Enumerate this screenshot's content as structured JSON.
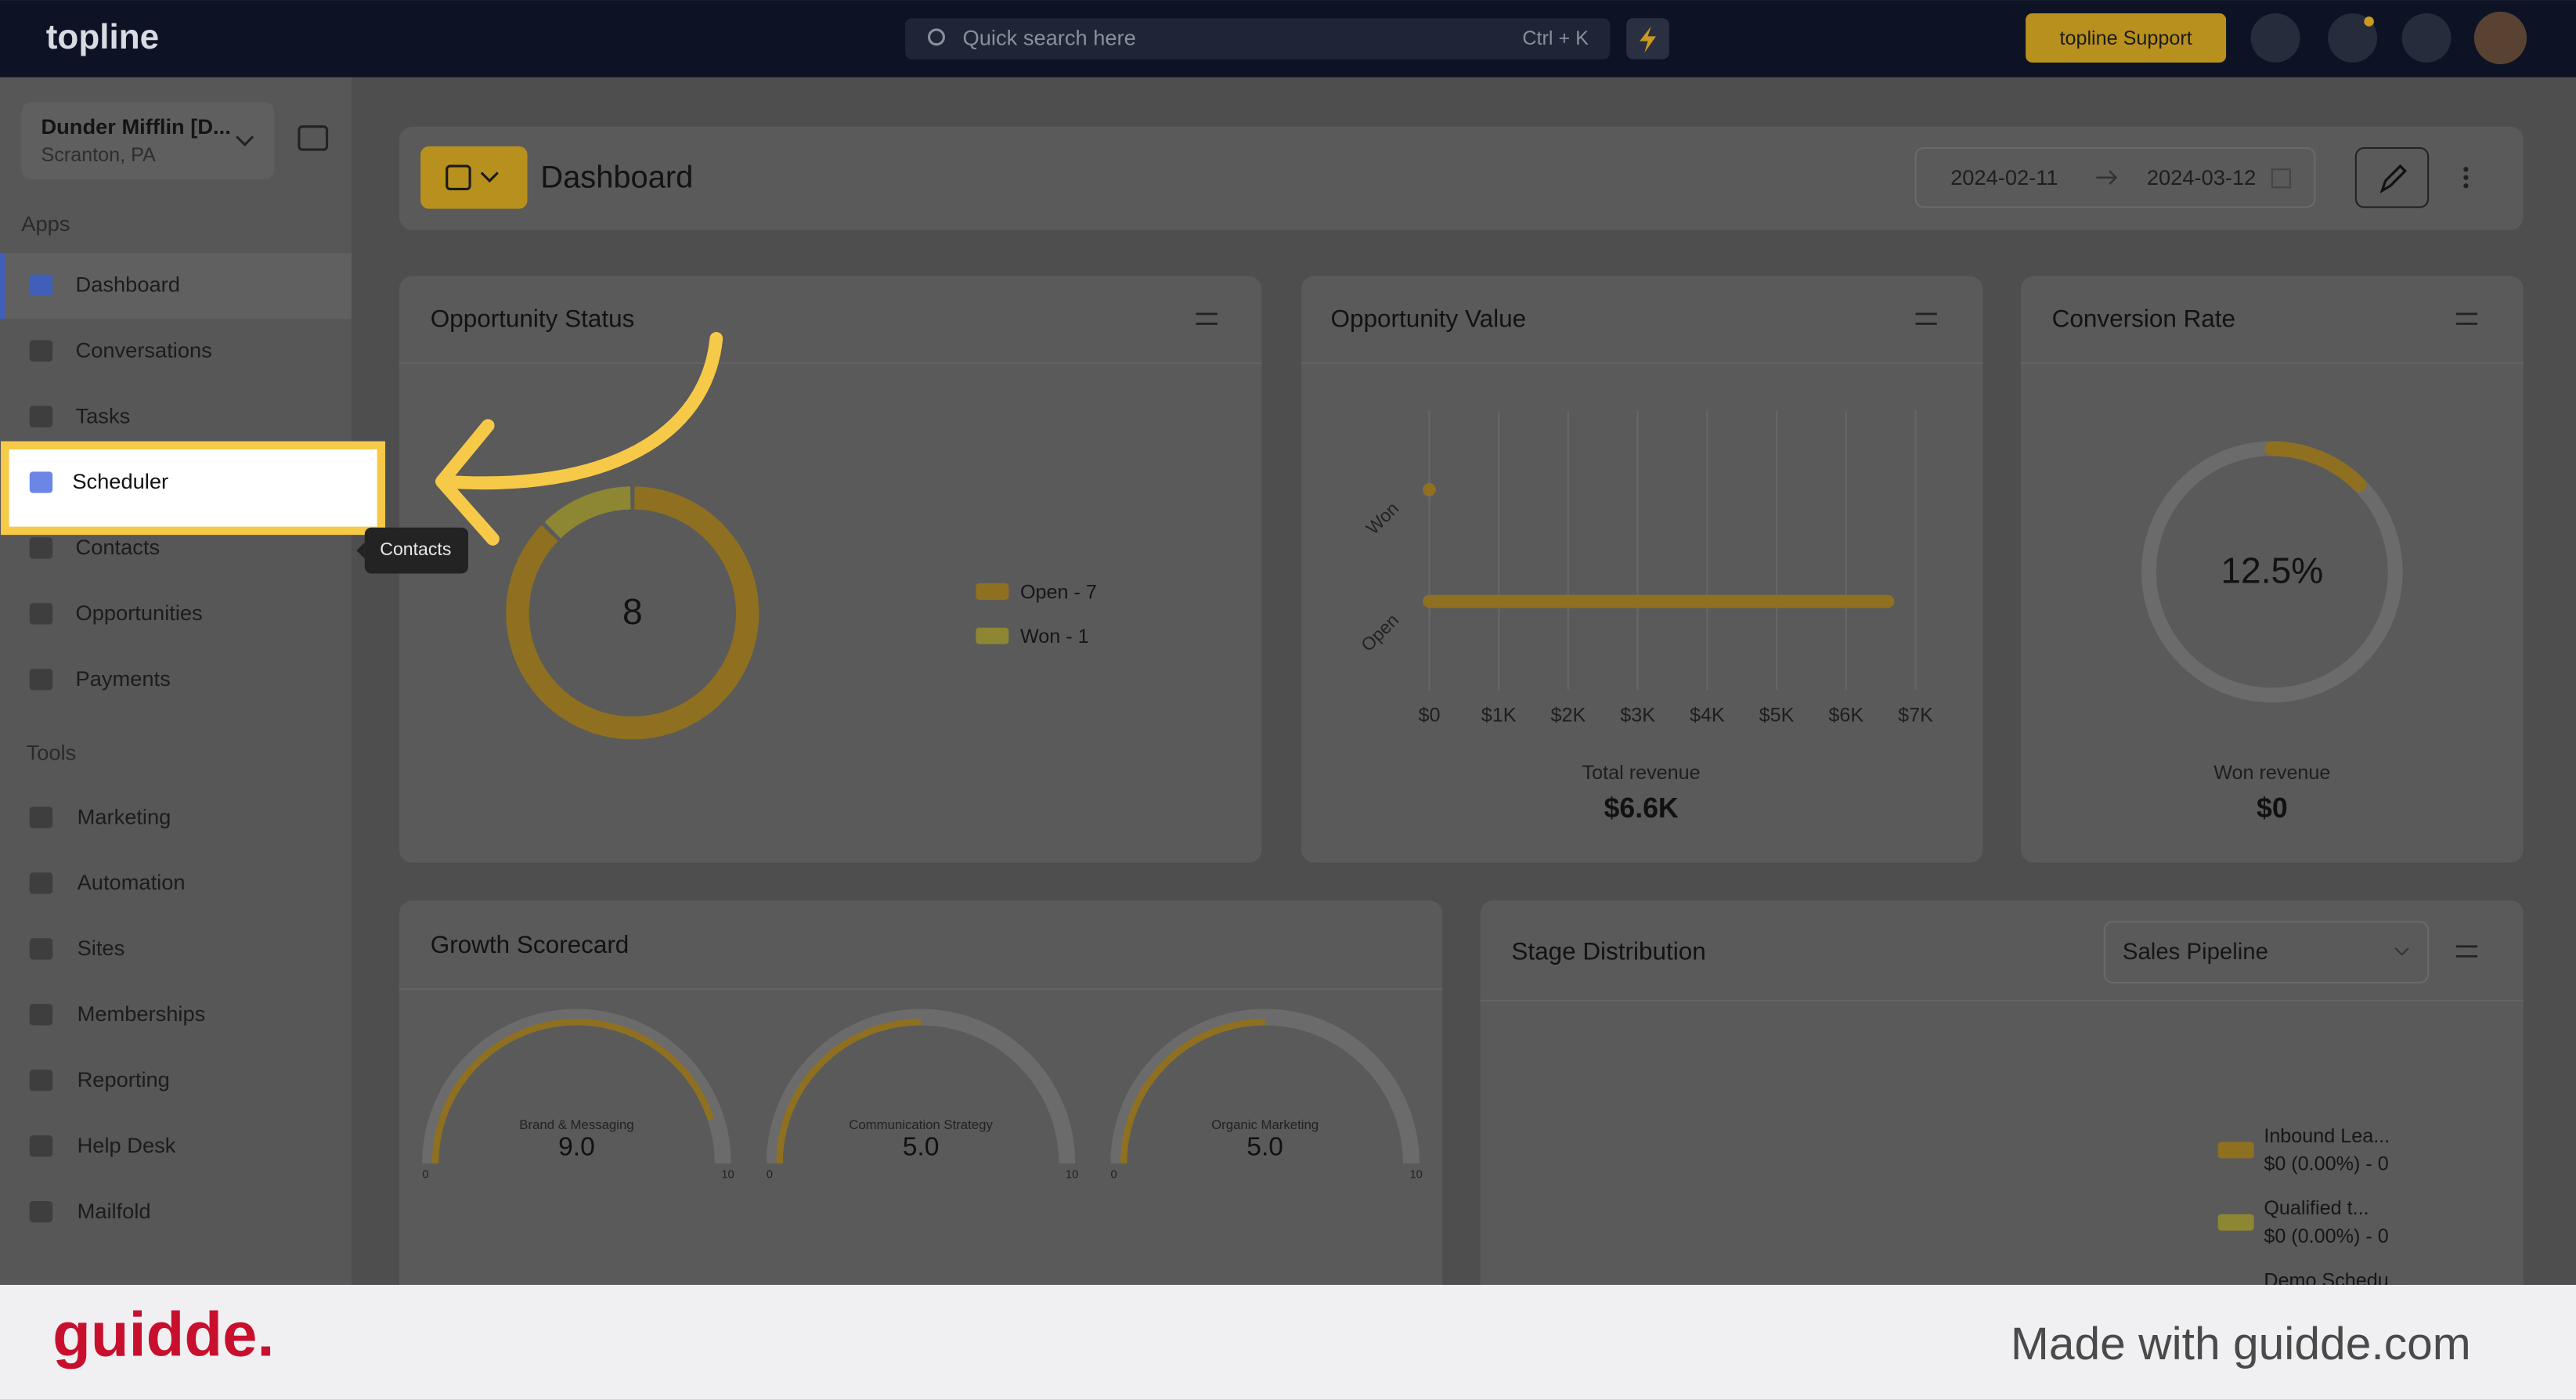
{
  "topbar": {
    "logo": "topline",
    "search_placeholder": "Quick search here",
    "shortcut": "Ctrl + K",
    "support": "topline Support"
  },
  "sidebar": {
    "account": {
      "name": "Dunder Mifflin [D...",
      "location": "Scranton, PA"
    },
    "apps_heading": "Apps",
    "apps": [
      "Dashboard",
      "Conversations",
      "Tasks",
      "Scheduler",
      "Contacts",
      "Opportunities",
      "Payments"
    ],
    "tools_heading": "Tools",
    "tools": [
      "Marketing",
      "Automation",
      "Sites",
      "Memberships",
      "Reporting",
      "Help Desk",
      "Mailfold"
    ],
    "tooltip": "Contacts"
  },
  "header": {
    "title": "Dashboard",
    "date_from": "2024-02-11",
    "date_to": "2024-03-12"
  },
  "opportunity_status": {
    "title": "Opportunity Status",
    "total": "8",
    "series": [
      {
        "name": "Open - 7",
        "value": 7,
        "color": "#8f7020"
      },
      {
        "name": "Won - 1",
        "value": 1,
        "color": "#8d8632"
      }
    ]
  },
  "opportunity_value": {
    "title": "Opportunity Value",
    "categories": [
      "Won",
      "Open"
    ],
    "values": [
      0,
      6600
    ],
    "color": "#8f7020",
    "xlim": [
      0,
      7000
    ],
    "xticks": [
      {
        "value": 0,
        "label": "$0"
      },
      {
        "value": 1000,
        "label": "$1K"
      },
      {
        "value": 2000,
        "label": "$2K"
      },
      {
        "value": 3000,
        "label": "$3K"
      },
      {
        "value": 4000,
        "label": "$4K"
      },
      {
        "value": 5000,
        "label": "$5K"
      },
      {
        "value": 6000,
        "label": "$6K"
      },
      {
        "value": 7000,
        "label": "$7K"
      }
    ],
    "footer_label": "Total revenue",
    "footer_value": "$6.6K"
  },
  "conversion_rate": {
    "title": "Conversion Rate",
    "value": 12.5,
    "value_label": "12.5%",
    "color": "#8f7020",
    "footer_label": "Won revenue",
    "footer_value": "$0"
  },
  "growth_scorecard": {
    "title": "Growth Scorecard",
    "color": "#8f7020",
    "gauges": [
      {
        "name": "Brand & Messaging",
        "value": 9,
        "value_label": "9.0",
        "min": 0,
        "max": 10
      },
      {
        "name": "Communication Strategy",
        "value": 5,
        "value_label": "5.0",
        "min": 0,
        "max": 10
      },
      {
        "name": "Organic Marketing",
        "value": 5,
        "value_label": "5.0",
        "min": 0,
        "max": 10
      }
    ]
  },
  "stage_distribution": {
    "title": "Stage Distribution",
    "pipeline": "Sales Pipeline",
    "legend": [
      {
        "name": "Inbound Lea...",
        "detail": "$0 (0.00%) - 0",
        "color": "#8f7020"
      },
      {
        "name": "Qualified t...",
        "detail": "$0 (0.00%) - 0",
        "color": "#8d8632"
      },
      {
        "name": "Demo Schedu..."
      }
    ]
  },
  "footer": {
    "brand": "guidde.",
    "credit": "Made with guidde.com"
  }
}
